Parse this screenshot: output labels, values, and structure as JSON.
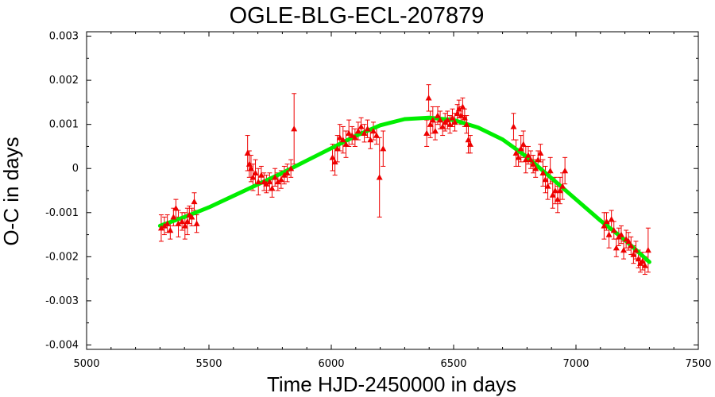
{
  "chart_data": {
    "type": "scatter",
    "title": "OGLE-BLG-ECL-207879",
    "xlabel": "Time HJD-2450000 in days",
    "ylabel": "O-C in days",
    "xlim": [
      5000,
      7500
    ],
    "ylim": [
      -0.0041,
      0.0031
    ],
    "x_ticks": [
      "5000",
      "5500",
      "6000",
      "6500",
      "7000",
      "7500"
    ],
    "y_ticks": [
      "0.003",
      "0.002",
      "0.001",
      "0",
      "-0.001",
      "-0.002",
      "-0.003",
      "-0.004"
    ],
    "grid": false,
    "colors": {
      "points": "#ee0000",
      "fit": "#00ee00",
      "axes": "#000000"
    },
    "series": [
      {
        "points": [
          {
            "x": 5305,
            "y": -0.00135,
            "err": 0.0003
          },
          {
            "x": 5318,
            "y": -0.0013,
            "err": 0.0002
          },
          {
            "x": 5330,
            "y": -0.00125,
            "err": 0.0002
          },
          {
            "x": 5342,
            "y": -0.0014,
            "err": 0.0002
          },
          {
            "x": 5355,
            "y": -0.0011,
            "err": 0.0002
          },
          {
            "x": 5365,
            "y": -0.0009,
            "err": 0.0002
          },
          {
            "x": 5375,
            "y": -0.00125,
            "err": 0.0003
          },
          {
            "x": 5390,
            "y": -0.0012,
            "err": 0.0002
          },
          {
            "x": 5402,
            "y": -0.0013,
            "err": 0.0003
          },
          {
            "x": 5412,
            "y": -0.0012,
            "err": 0.0003
          },
          {
            "x": 5420,
            "y": -0.00105,
            "err": 0.0002
          },
          {
            "x": 5430,
            "y": -0.0011,
            "err": 0.0002
          },
          {
            "x": 5440,
            "y": -0.00075,
            "err": 0.0002
          },
          {
            "x": 5450,
            "y": -0.00125,
            "err": 0.0002
          },
          {
            "x": 5658,
            "y": 0.00035,
            "err": 0.0004
          },
          {
            "x": 5665,
            "y": 0.0001,
            "err": 0.0003
          },
          {
            "x": 5672,
            "y": 0.0,
            "err": 0.0003
          },
          {
            "x": 5680,
            "y": -0.0002,
            "err": 0.0003
          },
          {
            "x": 5690,
            "y": -0.0001,
            "err": 0.0003
          },
          {
            "x": 5702,
            "y": -0.0003,
            "err": 0.0003
          },
          {
            "x": 5714,
            "y": -0.00015,
            "err": 0.0002
          },
          {
            "x": 5725,
            "y": -0.0003,
            "err": 0.0002
          },
          {
            "x": 5735,
            "y": -0.00035,
            "err": 0.0002
          },
          {
            "x": 5748,
            "y": -0.0003,
            "err": 0.0002
          },
          {
            "x": 5758,
            "y": -0.00045,
            "err": 0.0002
          },
          {
            "x": 5770,
            "y": -0.0002,
            "err": 0.0002
          },
          {
            "x": 5782,
            "y": -0.0003,
            "err": 0.0002
          },
          {
            "x": 5795,
            "y": -0.00025,
            "err": 0.0002
          },
          {
            "x": 5808,
            "y": -0.00015,
            "err": 0.0002
          },
          {
            "x": 5820,
            "y": -0.0001,
            "err": 0.0002
          },
          {
            "x": 5835,
            "y": 0.0,
            "err": 0.0002
          },
          {
            "x": 5848,
            "y": 0.0009,
            "err": 0.0008
          },
          {
            "x": 6005,
            "y": 0.00025,
            "err": 0.0003
          },
          {
            "x": 6015,
            "y": 0.00015,
            "err": 0.0003
          },
          {
            "x": 6025,
            "y": 0.00045,
            "err": 0.0003
          },
          {
            "x": 6035,
            "y": 0.0007,
            "err": 0.0003
          },
          {
            "x": 6048,
            "y": 0.00065,
            "err": 0.0003
          },
          {
            "x": 6060,
            "y": 0.00055,
            "err": 0.0003
          },
          {
            "x": 6072,
            "y": 0.0008,
            "err": 0.0003
          },
          {
            "x": 6085,
            "y": 0.00075,
            "err": 0.0002
          },
          {
            "x": 6097,
            "y": 0.0007,
            "err": 0.0002
          },
          {
            "x": 6110,
            "y": 0.00085,
            "err": 0.0002
          },
          {
            "x": 6122,
            "y": 0.00095,
            "err": 0.0002
          },
          {
            "x": 6135,
            "y": 0.0008,
            "err": 0.0002
          },
          {
            "x": 6148,
            "y": 0.0009,
            "err": 0.0002
          },
          {
            "x": 6160,
            "y": 0.00065,
            "err": 0.0002
          },
          {
            "x": 6172,
            "y": 0.00085,
            "err": 0.0002
          },
          {
            "x": 6185,
            "y": 0.00075,
            "err": 0.0002
          },
          {
            "x": 6197,
            "y": -0.0002,
            "err": 0.0009
          },
          {
            "x": 6212,
            "y": 0.00045,
            "err": 0.0004
          },
          {
            "x": 6390,
            "y": 0.0008,
            "err": 0.0003
          },
          {
            "x": 6398,
            "y": 0.0016,
            "err": 0.0003
          },
          {
            "x": 6405,
            "y": 0.001,
            "err": 0.0003
          },
          {
            "x": 6415,
            "y": 0.0011,
            "err": 0.0003
          },
          {
            "x": 6425,
            "y": 0.00085,
            "err": 0.0002
          },
          {
            "x": 6435,
            "y": 0.0012,
            "err": 0.0002
          },
          {
            "x": 6445,
            "y": 0.0011,
            "err": 0.0002
          },
          {
            "x": 6455,
            "y": 0.00095,
            "err": 0.0002
          },
          {
            "x": 6465,
            "y": 0.00105,
            "err": 0.0002
          },
          {
            "x": 6475,
            "y": 0.0011,
            "err": 0.0002
          },
          {
            "x": 6485,
            "y": 0.001,
            "err": 0.0002
          },
          {
            "x": 6495,
            "y": 0.00115,
            "err": 0.0002
          },
          {
            "x": 6505,
            "y": 0.00105,
            "err": 0.0002
          },
          {
            "x": 6515,
            "y": 0.00125,
            "err": 0.0002
          },
          {
            "x": 6522,
            "y": 0.00135,
            "err": 0.0002
          },
          {
            "x": 6530,
            "y": 0.0012,
            "err": 0.0002
          },
          {
            "x": 6537,
            "y": 0.0014,
            "err": 0.0002
          },
          {
            "x": 6545,
            "y": 0.00115,
            "err": 0.0002
          },
          {
            "x": 6553,
            "y": 0.001,
            "err": 0.0002
          },
          {
            "x": 6560,
            "y": 0.00065,
            "err": 0.0003
          },
          {
            "x": 6568,
            "y": 0.00055,
            "err": 0.0002
          },
          {
            "x": 6745,
            "y": 0.00095,
            "err": 0.0003
          },
          {
            "x": 6755,
            "y": 0.00035,
            "err": 0.0003
          },
          {
            "x": 6765,
            "y": 0.00025,
            "err": 0.0002
          },
          {
            "x": 6775,
            "y": 0.00045,
            "err": 0.0003
          },
          {
            "x": 6785,
            "y": 0.00055,
            "err": 0.0003
          },
          {
            "x": 6795,
            "y": 0.0002,
            "err": 0.0003
          },
          {
            "x": 6805,
            "y": 0.0003,
            "err": 0.0002
          },
          {
            "x": 6815,
            "y": 0.0002,
            "err": 0.0002
          },
          {
            "x": 6825,
            "y": 0.0001,
            "err": 0.0002
          },
          {
            "x": 6835,
            "y": 0.0,
            "err": 0.0002
          },
          {
            "x": 6845,
            "y": 0.0002,
            "err": 0.0002
          },
          {
            "x": 6855,
            "y": 0.00035,
            "err": 0.0002
          },
          {
            "x": 6865,
            "y": -0.0001,
            "err": 0.0003
          },
          {
            "x": 6875,
            "y": -0.00025,
            "err": 0.0003
          },
          {
            "x": 6885,
            "y": -0.0004,
            "err": 0.0003
          },
          {
            "x": 6895,
            "y": -5e-05,
            "err": 0.0003
          },
          {
            "x": 6905,
            "y": -0.0006,
            "err": 0.0003
          },
          {
            "x": 6915,
            "y": -0.0005,
            "err": 0.0003
          },
          {
            "x": 6925,
            "y": -0.0007,
            "err": 0.0003
          },
          {
            "x": 6935,
            "y": -0.0005,
            "err": 0.0003
          },
          {
            "x": 6945,
            "y": -0.0004,
            "err": 0.0003
          },
          {
            "x": 6955,
            "y": -5e-05,
            "err": 0.0003
          },
          {
            "x": 7115,
            "y": -0.0013,
            "err": 0.0003
          },
          {
            "x": 7125,
            "y": -0.0012,
            "err": 0.0002
          },
          {
            "x": 7135,
            "y": -0.0015,
            "err": 0.0003
          },
          {
            "x": 7145,
            "y": -0.00115,
            "err": 0.0002
          },
          {
            "x": 7155,
            "y": -0.0014,
            "err": 0.0002
          },
          {
            "x": 7165,
            "y": -0.0018,
            "err": 0.0002
          },
          {
            "x": 7175,
            "y": -0.00155,
            "err": 0.0002
          },
          {
            "x": 7185,
            "y": -0.0015,
            "err": 0.0002
          },
          {
            "x": 7195,
            "y": -0.00185,
            "err": 0.0002
          },
          {
            "x": 7205,
            "y": -0.0016,
            "err": 0.0002
          },
          {
            "x": 7215,
            "y": -0.00165,
            "err": 0.0002
          },
          {
            "x": 7225,
            "y": -0.00175,
            "err": 0.0002
          },
          {
            "x": 7235,
            "y": -0.00195,
            "err": 0.0002
          },
          {
            "x": 7245,
            "y": -0.00185,
            "err": 0.0002
          },
          {
            "x": 7255,
            "y": -0.00205,
            "err": 0.0002
          },
          {
            "x": 7263,
            "y": -0.00215,
            "err": 0.0002
          },
          {
            "x": 7272,
            "y": -0.0021,
            "err": 0.0002
          },
          {
            "x": 7282,
            "y": -0.0022,
            "err": 0.0002
          },
          {
            "x": 7295,
            "y": -0.00185,
            "err": 0.0005
          }
        ]
      },
      {
        "type": "line",
        "x": [
          5300,
          5400,
          5500,
          5600,
          5700,
          5800,
          5900,
          6000,
          6100,
          6200,
          6300,
          6400,
          6500,
          6600,
          6700,
          6800,
          6900,
          7000,
          7100,
          7200,
          7300
        ],
        "values": [
          -0.0013,
          -0.0011,
          -0.00088,
          -0.00062,
          -0.00036,
          -0.0001,
          0.00018,
          0.00046,
          0.00074,
          0.00098,
          0.00112,
          0.00115,
          0.0011,
          0.00093,
          0.00066,
          0.00026,
          -0.00022,
          -0.0007,
          -0.00118,
          -0.00162,
          -0.00212
        ]
      }
    ]
  }
}
